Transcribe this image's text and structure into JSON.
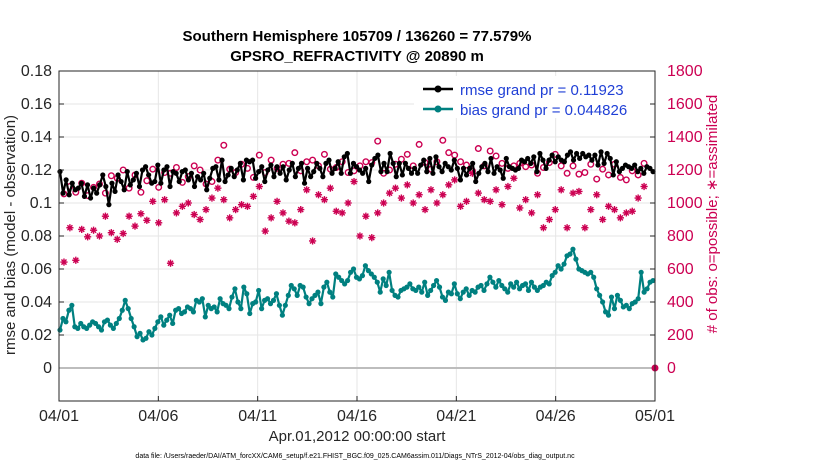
{
  "chart_data": {
    "type": "line",
    "title": "Southern Hemisphere 105709 / 136260 = 77.579%",
    "subtitle": "GPSRO_REFRACTIVITY @ 20890 m",
    "xlabel": "Apr.01,2012 00:00:00 start",
    "ylabel": "rmse and bias (model - observation)",
    "ylabel_right": "# of obs: o=possible; ∗=assimilated",
    "footnote": "data file: /Users/raeder/DAI/ATM_forcXX/CAM6_setup/f.e21.FHIST_BGC.f09_025.CAM6assim.011/Diags_NTrS_2012-04/obs_diag_output.nc",
    "xlim": [
      0,
      30
    ],
    "ylim": [
      -0.02,
      0.18
    ],
    "ylim_right": [
      -200,
      1800
    ],
    "x_tick_values": [
      0,
      5,
      10,
      15,
      20,
      25,
      30
    ],
    "x_tick_labels": [
      "04/01",
      "04/06",
      "04/11",
      "04/16",
      "04/21",
      "04/26",
      "05/01"
    ],
    "y_tick_labels": [
      "0",
      "0.02",
      "0.04",
      "0.06",
      "0.08",
      "0.1",
      "0.12",
      "0.14",
      "0.16",
      "0.18"
    ],
    "y_right_tick_labels": [
      "0",
      "200",
      "400",
      "600",
      "800",
      "1000",
      "1200",
      "1400",
      "1600",
      "1800"
    ],
    "grid": true,
    "legend_position": "top-right",
    "colors": {
      "rmse": "#000000",
      "bias": "#008080",
      "obs": "#cc0052",
      "zero": "#bdbdbd",
      "grid": "#e6e6e6"
    },
    "series": [
      {
        "name": "rmse grand pr = 0.11923",
        "values": [
          0.119,
          0.106,
          0.114,
          0.105,
          0.112,
          0.108,
          0.109,
          0.112,
          0.104,
          0.111,
          0.103,
          0.109,
          0.106,
          0.111,
          0.117,
          0.11,
          0.099,
          0.112,
          0.107,
          0.117,
          0.113,
          0.108,
          0.119,
          0.111,
          0.114,
          0.118,
          0.11,
          0.12,
          0.122,
          0.117,
          0.112,
          0.113,
          0.123,
          0.112,
          0.12,
          0.122,
          0.11,
          0.119,
          0.118,
          0.113,
          0.119,
          0.12,
          0.114,
          0.118,
          0.11,
          0.116,
          0.114,
          0.118,
          0.108,
          0.115,
          0.121,
          0.122,
          0.114,
          0.126,
          0.113,
          0.117,
          0.121,
          0.116,
          0.12,
          0.124,
          0.114,
          0.126,
          0.125,
          0.126,
          0.115,
          0.119,
          0.122,
          0.113,
          0.12,
          0.123,
          0.116,
          0.122,
          0.118,
          0.122,
          0.114,
          0.12,
          0.124,
          0.116,
          0.121,
          0.124,
          0.112,
          0.121,
          0.116,
          0.119,
          0.124,
          0.121,
          0.116,
          0.124,
          0.126,
          0.118,
          0.121,
          0.125,
          0.118,
          0.128,
          0.13,
          0.118,
          0.124,
          0.122,
          0.12,
          0.118,
          0.121,
          0.113,
          0.123,
          0.127,
          0.129,
          0.119,
          0.124,
          0.119,
          0.13,
          0.124,
          0.116,
          0.124,
          0.117,
          0.124,
          0.121,
          0.118,
          0.121,
          0.118,
          0.123,
          0.126,
          0.119,
          0.127,
          0.118,
          0.128,
          0.122,
          0.119,
          0.124,
          0.122,
          0.12,
          0.126,
          0.121,
          0.114,
          0.121,
          0.117,
          0.121,
          0.124,
          0.113,
          0.118,
          0.122,
          0.124,
          0.119,
          0.127,
          0.118,
          0.122,
          0.12,
          0.115,
          0.127,
          0.122,
          0.121,
          0.12,
          0.121,
          0.126,
          0.125,
          0.127,
          0.124,
          0.128,
          0.119,
          0.13,
          0.126,
          0.121,
          0.126,
          0.129,
          0.125,
          0.128,
          0.126,
          0.125,
          0.129,
          0.131,
          0.126,
          0.13,
          0.127,
          0.13,
          0.128,
          0.129,
          0.126,
          0.129,
          0.123,
          0.131,
          0.124,
          0.13,
          0.127,
          0.117,
          0.125,
          0.119,
          0.121,
          0.123,
          0.122,
          0.121,
          0.123,
          0.119,
          0.121,
          0.118,
          0.122,
          0.121,
          0.119
        ]
      },
      {
        "name": "bias grand pr = 0.044826",
        "values": [
          0.023,
          0.03,
          0.028,
          0.035,
          0.038,
          0.025,
          0.024,
          0.027,
          0.025,
          0.024,
          0.026,
          0.028,
          0.027,
          0.025,
          0.023,
          0.028,
          0.029,
          0.026,
          0.024,
          0.027,
          0.03,
          0.035,
          0.041,
          0.036,
          0.03,
          0.025,
          0.019,
          0.021,
          0.017,
          0.018,
          0.022,
          0.02,
          0.024,
          0.028,
          0.031,
          0.026,
          0.029,
          0.032,
          0.027,
          0.035,
          0.036,
          0.033,
          0.034,
          0.037,
          0.036,
          0.034,
          0.041,
          0.04,
          0.042,
          0.031,
          0.038,
          0.036,
          0.037,
          0.034,
          0.042,
          0.039,
          0.038,
          0.036,
          0.043,
          0.048,
          0.04,
          0.036,
          0.049,
          0.045,
          0.033,
          0.039,
          0.04,
          0.047,
          0.036,
          0.041,
          0.042,
          0.039,
          0.041,
          0.045,
          0.038,
          0.032,
          0.038,
          0.044,
          0.05,
          0.048,
          0.044,
          0.05,
          0.049,
          0.043,
          0.039,
          0.042,
          0.044,
          0.046,
          0.039,
          0.049,
          0.052,
          0.046,
          0.043,
          0.057,
          0.055,
          0.053,
          0.051,
          0.053,
          0.058,
          0.06,
          0.055,
          0.054,
          0.056,
          0.062,
          0.059,
          0.057,
          0.055,
          0.052,
          0.046,
          0.054,
          0.05,
          0.058,
          0.047,
          0.044,
          0.043,
          0.047,
          0.048,
          0.049,
          0.051,
          0.048,
          0.047,
          0.049,
          0.046,
          0.052,
          0.044,
          0.047,
          0.05,
          0.053,
          0.049,
          0.043,
          0.041,
          0.046,
          0.045,
          0.051,
          0.045,
          0.042,
          0.046,
          0.048,
          0.044,
          0.047,
          0.046,
          0.049,
          0.05,
          0.047,
          0.051,
          0.055,
          0.052,
          0.049,
          0.053,
          0.05,
          0.048,
          0.046,
          0.051,
          0.049,
          0.052,
          0.048,
          0.05,
          0.051,
          0.047,
          0.052,
          0.049,
          0.047,
          0.049,
          0.05,
          0.052,
          0.051,
          0.056,
          0.058,
          0.062,
          0.06,
          0.063,
          0.068,
          0.069,
          0.072,
          0.066,
          0.06,
          0.059,
          0.058,
          0.057,
          0.058,
          0.055,
          0.048,
          0.044,
          0.04,
          0.034,
          0.032,
          0.043,
          0.036,
          0.044,
          0.041,
          0.037,
          0.038,
          0.036,
          0.039,
          0.04,
          0.042,
          0.058,
          0.046,
          0.048,
          0.052,
          0.053
        ]
      },
      {
        "name": "possible",
        "axis": "right",
        "values": [
          1055,
          1100,
          1065,
          1120,
          1045,
          1095,
          1115,
          1060,
          1165,
          1150,
          1200,
          1090,
          1170,
          1065,
          1135,
          1205,
          1095,
          1185,
          1180,
          1215,
          1125,
          1160,
          1225,
          1200,
          1115,
          1130,
          1260,
          1350,
          1205,
          1185,
          1235,
          1210,
          1155,
          1290,
          1185,
          1260,
          1210,
          1235,
          1240,
          1305,
          1195,
          1250,
          1260,
          1225,
          1295,
          1205,
          1215,
          1250,
          1185,
          1195,
          1225,
          1250,
          1245,
          1375,
          1180,
          1200,
          1235,
          1265,
          1295,
          1225,
          1355,
          1245,
          1205,
          1250,
          1380,
          1305,
          1290,
          1250,
          1230,
          1195,
          1330,
          1225,
          1315,
          1285,
          1240,
          1210,
          1225,
          1240,
          1220,
          1230,
          1180,
          1215,
          1245,
          1295,
          1225,
          1180,
          1225,
          1175,
          1185,
          1235,
          1145,
          1205,
          1170,
          1235,
          1155,
          1140,
          1195,
          1170,
          1240
        ]
      },
      {
        "name": "assimilated",
        "axis": "right",
        "values": [
          642,
          850,
          653,
          840,
          795,
          835,
          800,
          920,
          820,
          780,
          815,
          920,
          860,
          935,
          895,
          1010,
          880,
          1020,
          635,
          940,
          980,
          1000,
          930,
          900,
          960,
          1030,
          1090,
          1020,
          910,
          960,
          990,
          980,
          1040,
          1100,
          830,
          910,
          1010,
          940,
          890,
          880,
          960,
          1080,
          770,
          1050,
          1020,
          1090,
          950,
          940,
          1000,
          1130,
          800,
          920,
          790,
          940,
          1000,
          1060,
          1090,
          1030,
          1110,
          1000,
          1050,
          960,
          1080,
          1000,
          1050,
          1110,
          1140,
          980,
          1010,
          1180,
          1060,
          1020,
          1010,
          1080,
          990,
          1100,
          1150,
          970,
          1020,
          940,
          1050,
          850,
          900,
          960,
          1080,
          850,
          1060,
          1070,
          850,
          960,
          1050,
          900,
          980,
          960,
          910,
          940,
          950,
          1030,
          1100
        ]
      }
    ]
  },
  "footnote_label": "data file: /Users/raeder/DAI/ATM_forcXX/CAM6_setup/f.e21.FHIST_BGC.f09_025.CAM6assim.011/Diags_NTrS_2012-04/obs_diag_output.nc"
}
